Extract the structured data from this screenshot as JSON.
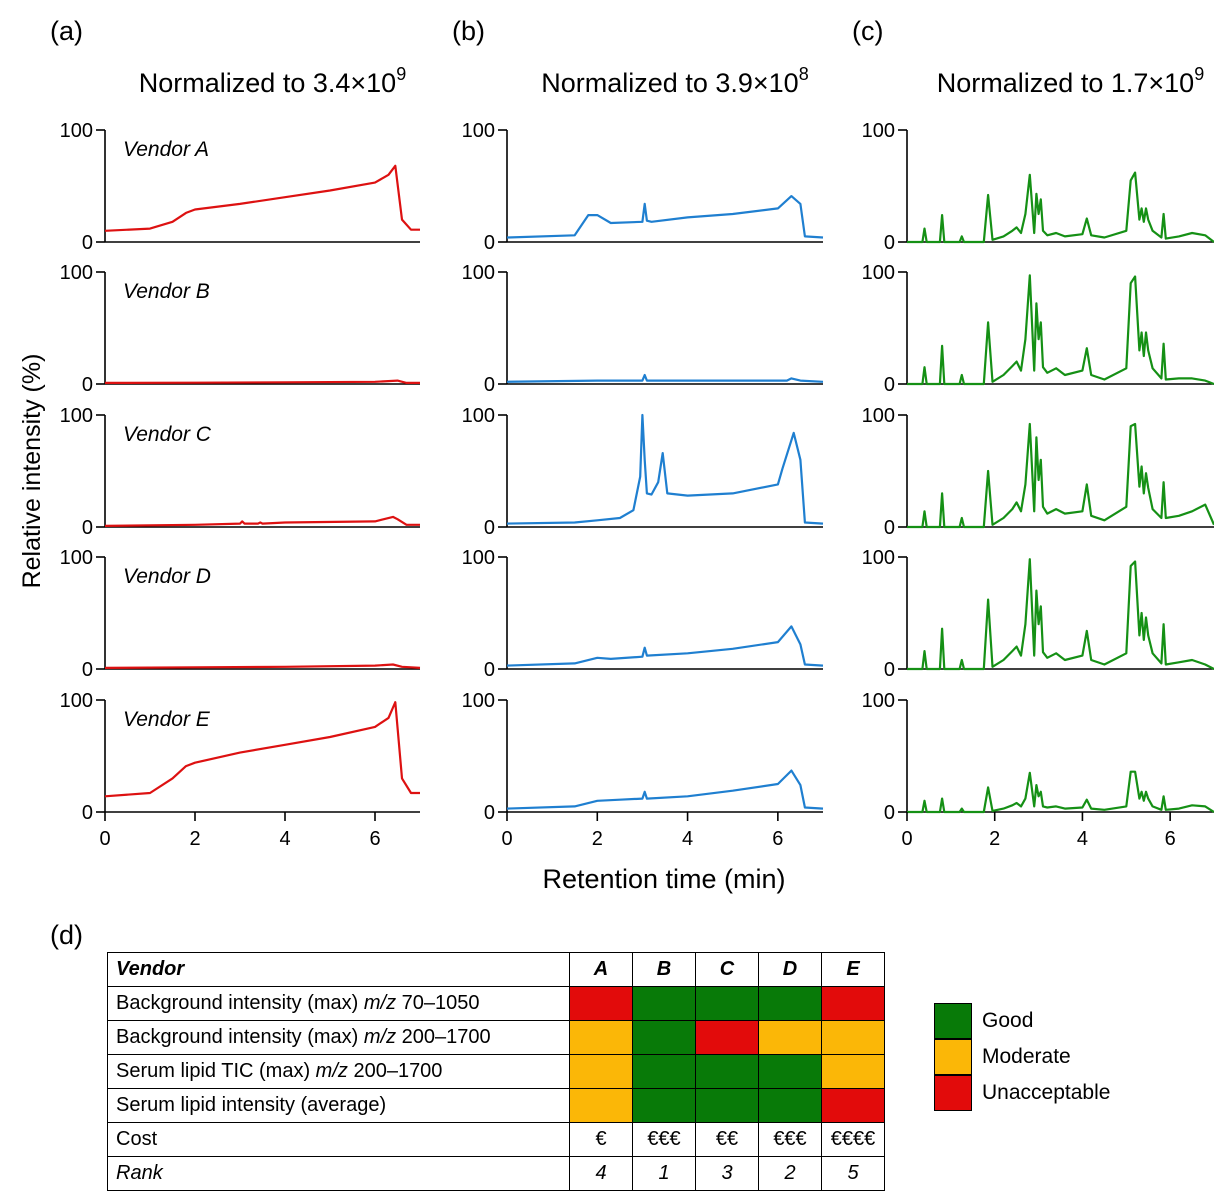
{
  "panels": [
    {
      "tag": "(a)",
      "title_prefix": "Normalized to 3.4×10",
      "title_exp": "9",
      "color": "#dd1111"
    },
    {
      "tag": "(b)",
      "title_prefix": "Normalized to 3.9×10",
      "title_exp": "8",
      "color": "#1f7fd0"
    },
    {
      "tag": "(c)",
      "title_prefix": "Normalized to 1.7×10",
      "title_exp": "9",
      "color": "#159015"
    }
  ],
  "vendors": [
    "Vendor A",
    "Vendor B",
    "Vendor C",
    "Vendor D",
    "Vendor E"
  ],
  "ylabel": "Relative intensity (%)",
  "xlabel": "Retention time (min)",
  "yticks": [
    "100",
    "0"
  ],
  "xticks": [
    "0",
    "2",
    "4",
    "6"
  ],
  "chart_data": [
    {
      "panel": "a",
      "type": "line",
      "xlim": [
        0,
        7
      ],
      "ylim": [
        0,
        100
      ],
      "note": "Approximate background traces (Vendor A–E), value in % of 3.4×10^9",
      "series": [
        {
          "name": "Vendor A",
          "x": [
            0,
            1.0,
            1.5,
            1.8,
            2.0,
            3.0,
            4.0,
            5.0,
            6.0,
            6.3,
            6.45,
            6.6,
            6.8,
            7.0
          ],
          "y": [
            10,
            12,
            18,
            26,
            29,
            34,
            40,
            46,
            53,
            60,
            68,
            20,
            11,
            11
          ]
        },
        {
          "name": "Vendor B",
          "x": [
            0,
            2,
            4,
            6,
            6.5,
            6.7,
            7.0
          ],
          "y": [
            1,
            1.2,
            1.5,
            2,
            3,
            1,
            1
          ]
        },
        {
          "name": "Vendor C",
          "x": [
            0,
            2,
            3.0,
            3.05,
            3.1,
            3.4,
            3.45,
            3.5,
            4,
            6,
            6.4,
            6.5,
            6.7,
            7.0
          ],
          "y": [
            1,
            2,
            3,
            5,
            3,
            3,
            4,
            3,
            4,
            5,
            9,
            7,
            2,
            2
          ]
        },
        {
          "name": "Vendor D",
          "x": [
            0,
            2,
            4,
            6,
            6.4,
            6.6,
            7.0
          ],
          "y": [
            1,
            1.5,
            2,
            3,
            4,
            2,
            1
          ]
        },
        {
          "name": "Vendor E",
          "x": [
            0,
            1.0,
            1.5,
            1.8,
            2.0,
            3.0,
            4.0,
            5.0,
            6.0,
            6.3,
            6.45,
            6.6,
            6.8,
            7.0
          ],
          "y": [
            14,
            17,
            30,
            41,
            44,
            53,
            60,
            67,
            76,
            84,
            98,
            30,
            17,
            17
          ]
        }
      ]
    },
    {
      "panel": "b",
      "type": "line",
      "xlim": [
        0,
        7
      ],
      "ylim": [
        0,
        100
      ],
      "note": "Approximate background traces, value in % of 3.9×10^8",
      "series": [
        {
          "name": "Vendor A",
          "x": [
            0,
            1.5,
            1.8,
            2.0,
            2.3,
            3.0,
            3.05,
            3.1,
            3.2,
            4,
            5,
            6,
            6.3,
            6.5,
            6.6,
            7.0
          ],
          "y": [
            4,
            6,
            24,
            24,
            17,
            18,
            34,
            19,
            18,
            22,
            25,
            30,
            41,
            34,
            5,
            4
          ]
        },
        {
          "name": "Vendor B",
          "x": [
            0,
            2,
            3.0,
            3.05,
            3.1,
            4,
            6,
            6.2,
            6.3,
            6.5,
            7.0
          ],
          "y": [
            2,
            3,
            3,
            8,
            3,
            3,
            3,
            3,
            5,
            3,
            2
          ]
        },
        {
          "name": "Vendor C",
          "x": [
            0,
            1.5,
            2.0,
            2.5,
            2.8,
            2.95,
            3.0,
            3.05,
            3.1,
            3.2,
            3.35,
            3.45,
            3.55,
            4,
            5,
            6,
            6.1,
            6.35,
            6.5,
            6.6,
            7.0
          ],
          "y": [
            3,
            4,
            6,
            8,
            15,
            45,
            100,
            60,
            30,
            29,
            40,
            66,
            30,
            28,
            30,
            38,
            52,
            84,
            60,
            4,
            3
          ]
        },
        {
          "name": "Vendor D",
          "x": [
            0,
            1.5,
            2.0,
            2.3,
            3.0,
            3.05,
            3.1,
            4,
            5,
            6,
            6.3,
            6.5,
            6.6,
            7.0
          ],
          "y": [
            3,
            5,
            10,
            9,
            11,
            19,
            12,
            14,
            18,
            24,
            38,
            22,
            4,
            3
          ]
        },
        {
          "name": "Vendor E",
          "x": [
            0,
            1.5,
            2.0,
            2.5,
            3.0,
            3.05,
            3.1,
            4,
            5,
            6,
            6.3,
            6.5,
            6.6,
            7.0
          ],
          "y": [
            3,
            5,
            10,
            11,
            12,
            18,
            12,
            14,
            19,
            25,
            37,
            24,
            4,
            3
          ]
        }
      ]
    },
    {
      "panel": "c",
      "type": "line",
      "xlim": [
        0,
        7
      ],
      "ylim": [
        0,
        100
      ],
      "note": "Approximate serum lipid TIC traces, value in % of 1.7×10^9",
      "series": [
        {
          "name": "Vendor A",
          "x": [
            0,
            0.35,
            0.4,
            0.45,
            0.75,
            0.8,
            0.85,
            1.2,
            1.25,
            1.3,
            1.75,
            1.85,
            1.95,
            2.2,
            2.4,
            2.5,
            2.6,
            2.7,
            2.8,
            2.9,
            2.95,
            3.0,
            3.05,
            3.1,
            3.2,
            3.4,
            3.6,
            4.0,
            4.1,
            4.2,
            4.5,
            5.0,
            5.1,
            5.2,
            5.3,
            5.35,
            5.4,
            5.45,
            5.5,
            5.6,
            5.8,
            5.85,
            5.9,
            6.2,
            6.5,
            6.8,
            7.0
          ],
          "y": [
            0,
            0,
            12,
            0,
            0,
            24,
            0,
            0,
            5,
            0,
            0,
            42,
            2,
            5,
            10,
            13,
            8,
            25,
            60,
            8,
            43,
            25,
            38,
            10,
            6,
            8,
            5,
            7,
            21,
            6,
            4,
            10,
            55,
            62,
            20,
            30,
            18,
            30,
            20,
            10,
            4,
            25,
            3,
            5,
            8,
            6,
            0
          ]
        },
        {
          "name": "Vendor B",
          "x": [
            0,
            0.35,
            0.4,
            0.45,
            0.75,
            0.8,
            0.85,
            1.2,
            1.25,
            1.3,
            1.75,
            1.85,
            1.95,
            2.2,
            2.4,
            2.5,
            2.6,
            2.7,
            2.8,
            2.9,
            2.95,
            3.0,
            3.05,
            3.1,
            3.2,
            3.4,
            3.6,
            4.0,
            4.1,
            4.2,
            4.5,
            5.0,
            5.1,
            5.2,
            5.3,
            5.35,
            5.4,
            5.45,
            5.5,
            5.6,
            5.8,
            5.85,
            5.9,
            6.2,
            6.5,
            6.8,
            7.0
          ],
          "y": [
            0,
            0,
            15,
            0,
            0,
            34,
            0,
            0,
            8,
            0,
            0,
            55,
            2,
            8,
            16,
            20,
            12,
            40,
            97,
            12,
            72,
            40,
            55,
            15,
            10,
            14,
            8,
            12,
            32,
            8,
            4,
            14,
            90,
            96,
            30,
            46,
            25,
            46,
            30,
            14,
            5,
            36,
            4,
            5,
            5,
            3,
            0
          ]
        },
        {
          "name": "Vendor C",
          "x": [
            0,
            0.35,
            0.4,
            0.45,
            0.75,
            0.8,
            0.85,
            1.2,
            1.25,
            1.3,
            1.75,
            1.85,
            1.95,
            2.2,
            2.4,
            2.5,
            2.6,
            2.7,
            2.8,
            2.9,
            2.95,
            3.0,
            3.05,
            3.1,
            3.2,
            3.4,
            3.6,
            4.0,
            4.1,
            4.2,
            4.5,
            5.0,
            5.1,
            5.2,
            5.3,
            5.35,
            5.4,
            5.45,
            5.5,
            5.6,
            5.8,
            5.85,
            5.9,
            6.2,
            6.5,
            6.8,
            7.0
          ],
          "y": [
            0,
            0,
            14,
            0,
            0,
            30,
            0,
            0,
            8,
            0,
            0,
            50,
            2,
            8,
            16,
            22,
            14,
            38,
            92,
            14,
            80,
            42,
            60,
            18,
            12,
            16,
            12,
            14,
            38,
            10,
            6,
            18,
            90,
            92,
            36,
            54,
            30,
            48,
            35,
            16,
            8,
            40,
            8,
            10,
            14,
            20,
            2
          ]
        },
        {
          "name": "Vendor D",
          "x": [
            0,
            0.35,
            0.4,
            0.45,
            0.75,
            0.8,
            0.85,
            1.2,
            1.25,
            1.3,
            1.75,
            1.85,
            1.95,
            2.2,
            2.4,
            2.5,
            2.6,
            2.7,
            2.8,
            2.9,
            2.95,
            3.0,
            3.05,
            3.1,
            3.2,
            3.4,
            3.6,
            4.0,
            4.1,
            4.2,
            4.5,
            5.0,
            5.1,
            5.2,
            5.3,
            5.35,
            5.4,
            5.45,
            5.5,
            5.6,
            5.8,
            5.85,
            5.9,
            6.2,
            6.5,
            6.8,
            7.0
          ],
          "y": [
            0,
            0,
            16,
            0,
            0,
            36,
            0,
            0,
            8,
            0,
            0,
            62,
            2,
            8,
            16,
            20,
            12,
            40,
            98,
            12,
            70,
            40,
            56,
            15,
            10,
            14,
            8,
            12,
            34,
            8,
            4,
            14,
            92,
            96,
            30,
            50,
            26,
            46,
            30,
            14,
            5,
            40,
            4,
            6,
            8,
            4,
            0
          ]
        },
        {
          "name": "Vendor E",
          "x": [
            0,
            0.35,
            0.4,
            0.45,
            0.75,
            0.8,
            0.85,
            1.2,
            1.25,
            1.3,
            1.75,
            1.85,
            1.95,
            2.2,
            2.4,
            2.5,
            2.6,
            2.7,
            2.8,
            2.9,
            2.95,
            3.0,
            3.05,
            3.1,
            3.2,
            3.4,
            3.6,
            4.0,
            4.1,
            4.2,
            4.5,
            5.0,
            5.1,
            5.2,
            5.3,
            5.35,
            5.4,
            5.45,
            5.5,
            5.6,
            5.8,
            5.85,
            5.9,
            6.2,
            6.5,
            6.8,
            7.0
          ],
          "y": [
            0,
            0,
            10,
            0,
            0,
            12,
            0,
            0,
            3,
            0,
            0,
            22,
            1,
            3,
            6,
            8,
            5,
            12,
            35,
            5,
            24,
            14,
            18,
            5,
            4,
            5,
            3,
            4,
            11,
            3,
            2,
            5,
            36,
            36,
            12,
            18,
            10,
            18,
            12,
            5,
            2,
            14,
            2,
            3,
            6,
            5,
            0
          ]
        }
      ]
    },
    {
      "panel": "d",
      "type": "table",
      "columns": [
        "Vendor",
        "A",
        "B",
        "C",
        "D",
        "E"
      ],
      "rows": [
        {
          "label_pre": "Background intensity (max) ",
          "label_mz": "m/z",
          "label_post": " 70–1050",
          "ratings": [
            "Unacceptable",
            "Good",
            "Good",
            "Good",
            "Unacceptable"
          ]
        },
        {
          "label_pre": "Background intensity (max) ",
          "label_mz": "m/z",
          "label_post": " 200–1700",
          "ratings": [
            "Moderate",
            "Good",
            "Unacceptable",
            "Moderate",
            "Moderate"
          ]
        },
        {
          "label_pre": "Serum lipid TIC (max) ",
          "label_mz": "m/z",
          "label_post": " 200–1700",
          "ratings": [
            "Moderate",
            "Good",
            "Good",
            "Good",
            "Moderate"
          ]
        },
        {
          "label_pre": "Serum lipid intensity (average)",
          "label_mz": "",
          "label_post": "",
          "ratings": [
            "Moderate",
            "Good",
            "Good",
            "Good",
            "Unacceptable"
          ]
        }
      ],
      "cost": {
        "label": "Cost",
        "values": [
          "€",
          "€€€",
          "€€",
          "€€€",
          "€€€€"
        ]
      },
      "rank": {
        "label": "Rank",
        "values": [
          "4",
          "1",
          "3",
          "2",
          "5"
        ]
      }
    }
  ],
  "panel_d": {
    "tag": "(d)"
  },
  "legend": [
    {
      "label": "Good",
      "color": "#087a08"
    },
    {
      "label": "Moderate",
      "color": "#fbb707"
    },
    {
      "label": "Unacceptable",
      "color": "#e20b0b"
    }
  ]
}
